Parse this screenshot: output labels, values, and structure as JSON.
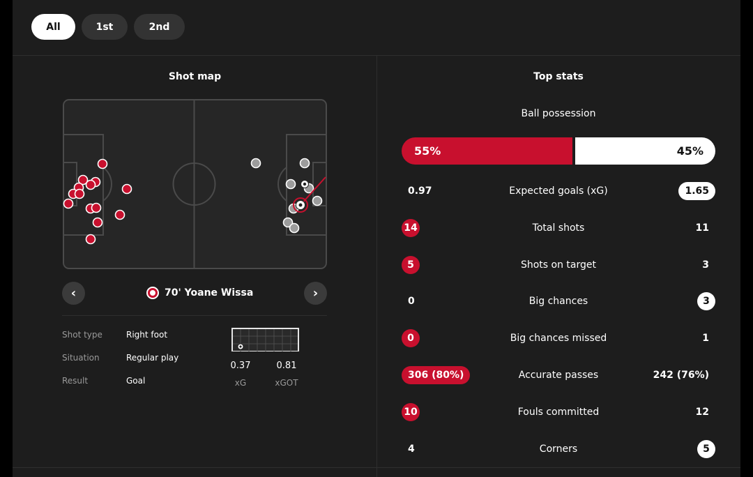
{
  "tabs": [
    "All",
    "1st",
    "2nd"
  ],
  "shot_map": {
    "title": "Shot map",
    "selected_shot": {
      "minute": "70'",
      "player": "Yoane Wissa"
    },
    "details": [
      {
        "label": "Shot type",
        "value": "Right foot"
      },
      {
        "label": "Situation",
        "value": "Regular play"
      },
      {
        "label": "Result",
        "value": "Goal"
      }
    ],
    "xg": {
      "value": "0.37",
      "label": "xG"
    },
    "xgot": {
      "value": "0.81",
      "label": "xGOT"
    }
  },
  "top_stats": {
    "title": "Top stats",
    "possession": {
      "label": "Ball possession",
      "home": "55%",
      "away": "45%",
      "home_fraction": 0.55
    },
    "rows": [
      {
        "label": "Expected goals (xG)",
        "home": "0.97",
        "away": "1.65",
        "highlight": "away"
      },
      {
        "label": "Total shots",
        "home": "14",
        "away": "11",
        "highlight": "home"
      },
      {
        "label": "Shots on target",
        "home": "5",
        "away": "3",
        "highlight": "home"
      },
      {
        "label": "Big chances",
        "home": "0",
        "away": "3",
        "highlight": "away"
      },
      {
        "label": "Big chances missed",
        "home": "0",
        "away": "1",
        "highlight": "home"
      },
      {
        "label": "Accurate passes",
        "home": "306 (80%)",
        "away": "242 (76%)",
        "highlight": "home"
      },
      {
        "label": "Fouls committed",
        "home": "10",
        "away": "12",
        "highlight": "home"
      },
      {
        "label": "Corners",
        "home": "4",
        "away": "5",
        "highlight": "away"
      }
    ]
  },
  "colors": {
    "home": "#c8102e",
    "away": "#ffffff",
    "card": "#1d1d1d"
  },
  "icons": {
    "prev": "chevron-left-icon",
    "next": "chevron-right-icon",
    "crest": "team-crest-icon",
    "ball": "football-icon"
  }
}
